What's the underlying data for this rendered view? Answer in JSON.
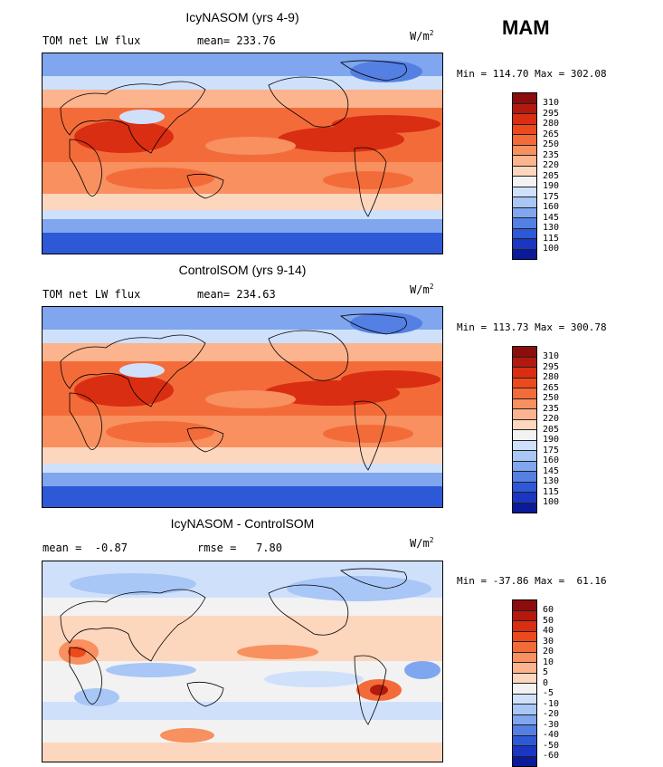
{
  "season": "MAM",
  "panels": [
    {
      "title": "IcyNASOM (yrs 4-9)",
      "left_label": "TOM net LW flux",
      "stat_label": "mean= 233.76",
      "units": "W/m",
      "units_exp": "2",
      "minmax": "Min = 114.70 Max = 302.08",
      "colorbar_labels": [
        "310",
        "295",
        "280",
        "265",
        "250",
        "235",
        "220",
        "205",
        "190",
        "175",
        "160",
        "145",
        "130",
        "115",
        "100"
      ],
      "colorbar_colors": [
        "#8c0d0d",
        "#b31a0d",
        "#d92e12",
        "#ec4a1c",
        "#f46b3a",
        "#f8905f",
        "#fbb48e",
        "#fdd6be",
        "#f2f2f2",
        "#cfe0fb",
        "#a8c6f6",
        "#7fa6ee",
        "#547fe3",
        "#2e59d6",
        "#1a36c2",
        "#0a1a99"
      ]
    },
    {
      "title": "ControlSOM (yrs 9-14)",
      "left_label": "TOM net LW flux",
      "stat_label": "mean= 234.63",
      "units": "W/m",
      "units_exp": "2",
      "minmax": "Min = 113.73 Max = 300.78",
      "colorbar_labels": [
        "310",
        "295",
        "280",
        "265",
        "250",
        "235",
        "220",
        "205",
        "190",
        "175",
        "160",
        "145",
        "130",
        "115",
        "100"
      ],
      "colorbar_colors": [
        "#8c0d0d",
        "#b31a0d",
        "#d92e12",
        "#ec4a1c",
        "#f46b3a",
        "#f8905f",
        "#fbb48e",
        "#fdd6be",
        "#f2f2f2",
        "#cfe0fb",
        "#a8c6f6",
        "#7fa6ee",
        "#547fe3",
        "#2e59d6",
        "#1a36c2",
        "#0a1a99"
      ]
    },
    {
      "title": "IcyNASOM - ControlSOM",
      "left_label": "mean =  -0.87",
      "stat_label": "rmse =   7.80",
      "units": "W/m",
      "units_exp": "2",
      "minmax": "Min = -37.86 Max =  61.16",
      "colorbar_labels": [
        "60",
        "50",
        "40",
        "30",
        "20",
        "10",
        "5",
        "0",
        "-5",
        "-10",
        "-20",
        "-30",
        "-40",
        "-50",
        "-60"
      ],
      "colorbar_colors": [
        "#8c0d0d",
        "#b31a0d",
        "#d92e12",
        "#ec4a1c",
        "#f46b3a",
        "#f8905f",
        "#fbb48e",
        "#fdd6be",
        "#f2f2f2",
        "#cfe0fb",
        "#a8c6f6",
        "#7fa6ee",
        "#547fe3",
        "#2e59d6",
        "#1a36c2",
        "#0a1a99"
      ]
    }
  ]
}
